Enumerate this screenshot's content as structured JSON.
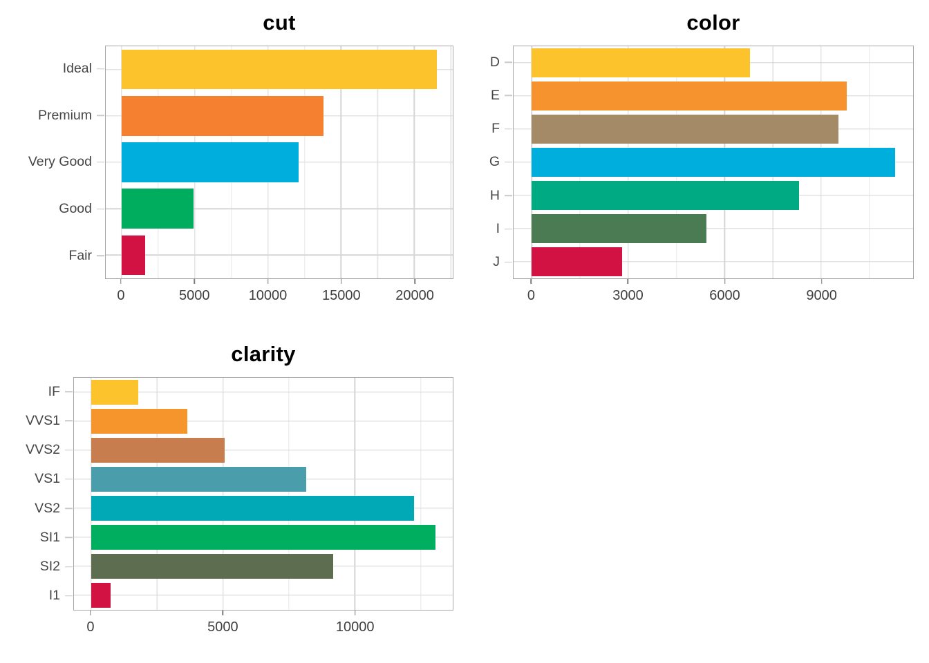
{
  "page": {
    "background": "#FFFFFF"
  },
  "style": {
    "grid_major": "#D5D5D5",
    "grid_minor": "#E7E7E7",
    "panel_border": "#A6A6A6",
    "tick_color_x": "#7A7A7A",
    "tick_color_y": "#C9C9C9",
    "axis_text_color": "#3F3F3F",
    "title_color": "#000000"
  },
  "chart_data": [
    {
      "type": "bar",
      "orientation": "horizontal",
      "title": "cut",
      "categories": [
        "Ideal",
        "Premium",
        "Very Good",
        "Good",
        "Fair"
      ],
      "values": [
        21551,
        13791,
        12082,
        4906,
        1610
      ],
      "colors": [
        "#FDC32C",
        "#F5802F",
        "#00AEDE",
        "#00AC5E",
        "#D11243"
      ],
      "x_ticks": [
        0,
        5000,
        10000,
        15000,
        20000
      ],
      "xlim": [
        -1078,
        22629
      ],
      "xlabel": "",
      "ylabel": "",
      "grid": true,
      "legend": false
    },
    {
      "type": "bar",
      "orientation": "horizontal",
      "title": "color",
      "categories": [
        "D",
        "E",
        "F",
        "G",
        "H",
        "I",
        "J"
      ],
      "values": [
        6775,
        9797,
        9542,
        11292,
        8304,
        5422,
        2808
      ],
      "colors": [
        "#FDC32C",
        "#F6932E",
        "#A58A68",
        "#00AEDE",
        "#00AB84",
        "#4A7B52",
        "#D11243"
      ],
      "x_ticks": [
        0,
        3000,
        6000,
        9000
      ],
      "xlim": [
        -565,
        11857
      ],
      "xlabel": "",
      "ylabel": "",
      "grid": true,
      "legend": false
    },
    {
      "type": "bar",
      "orientation": "horizontal",
      "title": "clarity",
      "categories": [
        "IF",
        "VVS1",
        "VVS2",
        "VS1",
        "VS2",
        "SI1",
        "SI2",
        "I1"
      ],
      "values": [
        1790,
        3655,
        5066,
        8171,
        12258,
        13065,
        9194,
        741
      ],
      "colors": [
        "#FDC32C",
        "#F7952D",
        "#C87D4F",
        "#4A9DAA",
        "#00A9B5",
        "#00AE60",
        "#5C6E4F",
        "#D11243"
      ],
      "x_ticks": [
        0,
        5000,
        10000
      ],
      "xlim": [
        -653,
        13718
      ],
      "xlabel": "",
      "ylabel": "",
      "grid": true,
      "legend": false
    }
  ]
}
